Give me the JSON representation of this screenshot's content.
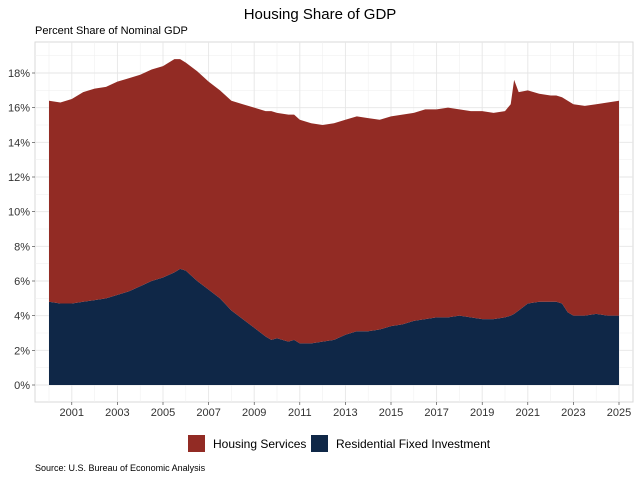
{
  "chart_data": {
    "type": "area",
    "stacked": true,
    "title": "Housing Share of GDP",
    "subtitle": "Percent Share of Nominal GDP",
    "xlabel": "",
    "ylabel": "",
    "caption": "Source: U.S. Bureau of Economic Analysis",
    "ylim": [
      0,
      19
    ],
    "xlim": [
      1999.6,
      2025.3
    ],
    "y_ticks": [
      0,
      2,
      4,
      6,
      8,
      10,
      12,
      14,
      16,
      18
    ],
    "y_tick_labels": [
      "0%",
      "2%",
      "4%",
      "6%",
      "8%",
      "10%",
      "12%",
      "14%",
      "16%",
      "18%"
    ],
    "x_ticks": [
      2001,
      2003,
      2005,
      2007,
      2009,
      2011,
      2013,
      2015,
      2017,
      2019,
      2021,
      2023,
      2025
    ],
    "x_tick_labels": [
      "2001",
      "2003",
      "2005",
      "2007",
      "2009",
      "2011",
      "2013",
      "2015",
      "2017",
      "2019",
      "2021",
      "2023",
      "2025"
    ],
    "grid": true,
    "legend_position": "bottom",
    "legend": [
      "Housing Services",
      "Residential Fixed Investment"
    ],
    "colors": {
      "Housing Services": "#922b24",
      "Residential Fixed Investment": "#0f2747"
    },
    "x": [
      2000,
      2000.5,
      2001,
      2001.5,
      2002,
      2002.5,
      2003,
      2003.5,
      2004,
      2004.5,
      2005,
      2005.5,
      2005.75,
      2006,
      2006.5,
      2007,
      2007.5,
      2008,
      2008.5,
      2009,
      2009.5,
      2009.75,
      2010,
      2010.5,
      2010.75,
      2011,
      2011.5,
      2012,
      2012.5,
      2013,
      2013.5,
      2014,
      2014.5,
      2015,
      2015.5,
      2016,
      2016.5,
      2017,
      2017.5,
      2018,
      2018.5,
      2019,
      2019.5,
      2020,
      2020.25,
      2020.4,
      2020.6,
      2021,
      2021.5,
      2022,
      2022.25,
      2022.5,
      2022.75,
      2023,
      2023.5,
      2024,
      2024.5,
      2025
    ],
    "series": [
      {
        "name": "Residential Fixed Investment",
        "values": [
          4.8,
          4.7,
          4.7,
          4.8,
          4.9,
          5.0,
          5.2,
          5.4,
          5.7,
          6.0,
          6.2,
          6.5,
          6.7,
          6.6,
          6.0,
          5.5,
          5.0,
          4.3,
          3.8,
          3.3,
          2.8,
          2.6,
          2.7,
          2.5,
          2.6,
          2.4,
          2.4,
          2.5,
          2.6,
          2.9,
          3.1,
          3.1,
          3.2,
          3.4,
          3.5,
          3.7,
          3.8,
          3.9,
          3.9,
          4.0,
          3.9,
          3.8,
          3.8,
          3.9,
          4.0,
          4.1,
          4.3,
          4.7,
          4.8,
          4.8,
          4.8,
          4.7,
          4.2,
          4.0,
          4.0,
          4.1,
          4.0,
          4.0
        ]
      },
      {
        "name": "Housing Services",
        "values": [
          11.6,
          11.6,
          11.8,
          12.1,
          12.2,
          12.2,
          12.3,
          12.3,
          12.2,
          12.2,
          12.2,
          12.3,
          12.1,
          12.0,
          12.1,
          12.0,
          12.0,
          12.1,
          12.4,
          12.7,
          13.0,
          13.2,
          13.0,
          13.1,
          13.0,
          12.9,
          12.7,
          12.5,
          12.5,
          12.4,
          12.4,
          12.3,
          12.1,
          12.1,
          12.1,
          12.0,
          12.1,
          12.0,
          12.1,
          11.9,
          11.9,
          12.0,
          11.9,
          11.9,
          12.2,
          13.5,
          12.6,
          12.3,
          12.0,
          11.9,
          11.9,
          11.9,
          12.2,
          12.2,
          12.1,
          12.1,
          12.3,
          12.4
        ]
      }
    ]
  }
}
